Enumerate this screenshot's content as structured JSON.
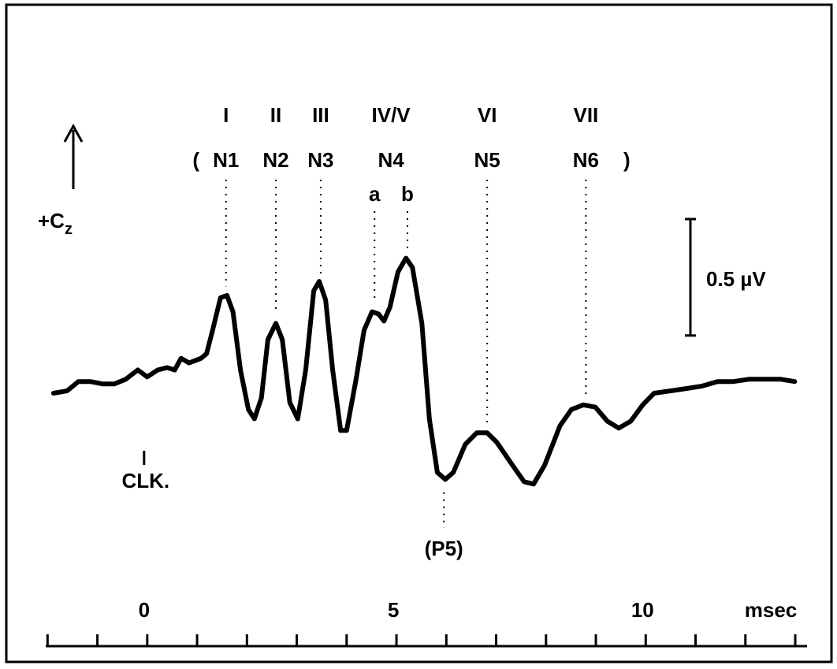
{
  "chart_data": {
    "type": "line",
    "x": [
      -1.88,
      -1.61,
      -1.38,
      -1.14,
      -0.9,
      -0.66,
      -0.43,
      -0.19,
      0,
      0.21,
      0.4,
      0.55,
      0.68,
      0.84,
      1.08,
      1.19,
      1.31,
      1.47,
      1.6,
      1.72,
      1.87,
      2.03,
      2.15,
      2.29,
      2.42,
      2.58,
      2.71,
      2.86,
      3.02,
      3.18,
      3.34,
      3.45,
      3.58,
      3.72,
      3.88,
      4.0,
      4.19,
      4.35,
      4.51,
      4.64,
      4.75,
      4.87,
      5.03,
      5.19,
      5.32,
      5.51,
      5.66,
      5.82,
      5.98,
      6.14,
      6.38,
      6.61,
      6.82,
      7.01,
      7.33,
      7.56,
      7.75,
      7.97,
      8.28,
      8.51,
      8.75,
      8.99,
      9.23,
      9.46,
      9.7,
      9.94,
      10.17,
      10.49,
      10.81,
      11.12,
      11.44,
      11.76,
      12.07,
      12.39,
      12.71,
      12.99
    ],
    "values": [
      -0.03,
      -0.02,
      0.02,
      0.02,
      0.01,
      0.01,
      0.03,
      0.07,
      0.04,
      0.07,
      0.08,
      0.07,
      0.12,
      0.1,
      0.12,
      0.14,
      0.24,
      0.38,
      0.39,
      0.32,
      0.07,
      -0.1,
      -0.14,
      -0.05,
      0.2,
      0.27,
      0.2,
      -0.07,
      -0.14,
      0.07,
      0.41,
      0.45,
      0.37,
      0.07,
      -0.19,
      -0.19,
      0.03,
      0.24,
      0.32,
      0.31,
      0.28,
      0.34,
      0.49,
      0.55,
      0.51,
      0.27,
      -0.14,
      -0.37,
      -0.4,
      -0.37,
      -0.25,
      -0.2,
      -0.2,
      -0.24,
      -0.34,
      -0.41,
      -0.42,
      -0.34,
      -0.17,
      -0.1,
      -0.08,
      -0.09,
      -0.15,
      -0.18,
      -0.15,
      -0.08,
      -0.03,
      -0.02,
      -0.01,
      0,
      0.02,
      0.02,
      0.03,
      0.03,
      0.03,
      0.02
    ],
    "color": "#000000",
    "xlim": [
      -2.1,
      13.3
    ],
    "ylim": [
      -0.71,
      1.32
    ],
    "xticks": [
      0,
      5,
      10
    ],
    "minor_xticks": [
      -2,
      -1,
      1,
      2,
      3,
      4,
      6,
      7,
      8,
      9,
      11,
      12,
      13
    ],
    "x_unit": "msec",
    "paren_open": "(",
    "paren_close": ")",
    "peaks": [
      {
        "roman": "I",
        "wave": "N1",
        "x": 1.58
      },
      {
        "roman": "II",
        "wave": "N2",
        "x": 2.58
      },
      {
        "roman": "III",
        "wave": "N3",
        "x": 3.48
      },
      {
        "roman": "IV/V",
        "wave": "N4",
        "subpeaks": [
          {
            "label": "a",
            "x": 4.56
          },
          {
            "label": "b",
            "x": 5.22
          }
        ]
      },
      {
        "roman": "VI",
        "wave": "N5",
        "x": 6.82
      },
      {
        "roman": "VII",
        "wave": "N6",
        "x": 8.8
      }
    ],
    "trough": {
      "label": "(P5)",
      "x": 5.95
    },
    "polarity": {
      "label": "+C",
      "subscript": "z"
    },
    "stimulus": {
      "label": "CLK.",
      "x": 0
    },
    "scale_bar": {
      "value": 0.5,
      "label": "0.5 µV"
    }
  }
}
